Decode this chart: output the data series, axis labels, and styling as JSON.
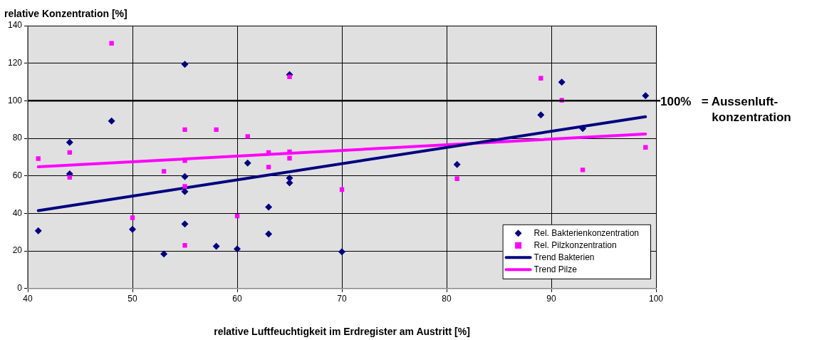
{
  "chart_data": {
    "type": "scatter",
    "xlabel": "relative Luftfeuchtigkeit im Erdregister am Austritt [%]",
    "ylabel": "relative Konzentration [%]",
    "xlim": [
      40,
      100
    ],
    "xticks": [
      40,
      50,
      60,
      70,
      80,
      90,
      100
    ],
    "ylim": [
      0,
      140
    ],
    "yticks": [
      0,
      20,
      40,
      60,
      80,
      100,
      120,
      140
    ],
    "grid": true,
    "legend": "bottom right",
    "ref_lines": [
      {
        "axis": "y",
        "value": 100,
        "label": "100%   = Aussenluft-konzentration",
        "color": "#000000"
      }
    ],
    "series": [
      {
        "name": "Rel. Bakterienkonzentration",
        "marker": "diamond",
        "color": "#000080",
        "x": [
          41,
          44,
          44,
          48,
          50,
          53,
          55,
          55,
          55,
          55,
          58,
          60,
          61,
          63,
          63,
          65,
          65,
          65,
          70,
          81,
          89,
          91,
          93,
          99
        ],
        "values": [
          30.8,
          77.8,
          61,
          89.2,
          31.5,
          18.4,
          119.4,
          59.6,
          51.6,
          34.4,
          22.5,
          21.1,
          66.8,
          43.4,
          29.1,
          113.9,
          58.9,
          56.3,
          19.6,
          66.1,
          92.5,
          109.9,
          85.2,
          102.7
        ]
      },
      {
        "name": "Rel. Pilzkonzentration",
        "marker": "square",
        "color": "#ff00ff",
        "x": [
          41,
          44,
          44,
          48,
          50,
          53,
          55,
          55,
          55,
          55,
          58,
          60,
          61,
          63,
          63,
          65,
          65,
          65,
          70,
          81,
          89,
          91,
          93,
          99
        ],
        "values": [
          69.2,
          72.5,
          59.2,
          130.6,
          37.7,
          62.4,
          84.6,
          68.1,
          54.4,
          23,
          84.6,
          38.6,
          81,
          72.5,
          64.7,
          112.7,
          72.8,
          69.4,
          52.7,
          58.5,
          112,
          100.3,
          63.2,
          75.2
        ]
      },
      {
        "name": "Trend Bakterien",
        "type": "line",
        "color": "#000080",
        "x": [
          41,
          99
        ],
        "values": [
          41.5,
          91.5
        ]
      },
      {
        "name": "Trend Pilze",
        "type": "line",
        "color": "#ff00ff",
        "x": [
          41,
          99
        ],
        "values": [
          64.8,
          82.3
        ]
      }
    ]
  }
}
